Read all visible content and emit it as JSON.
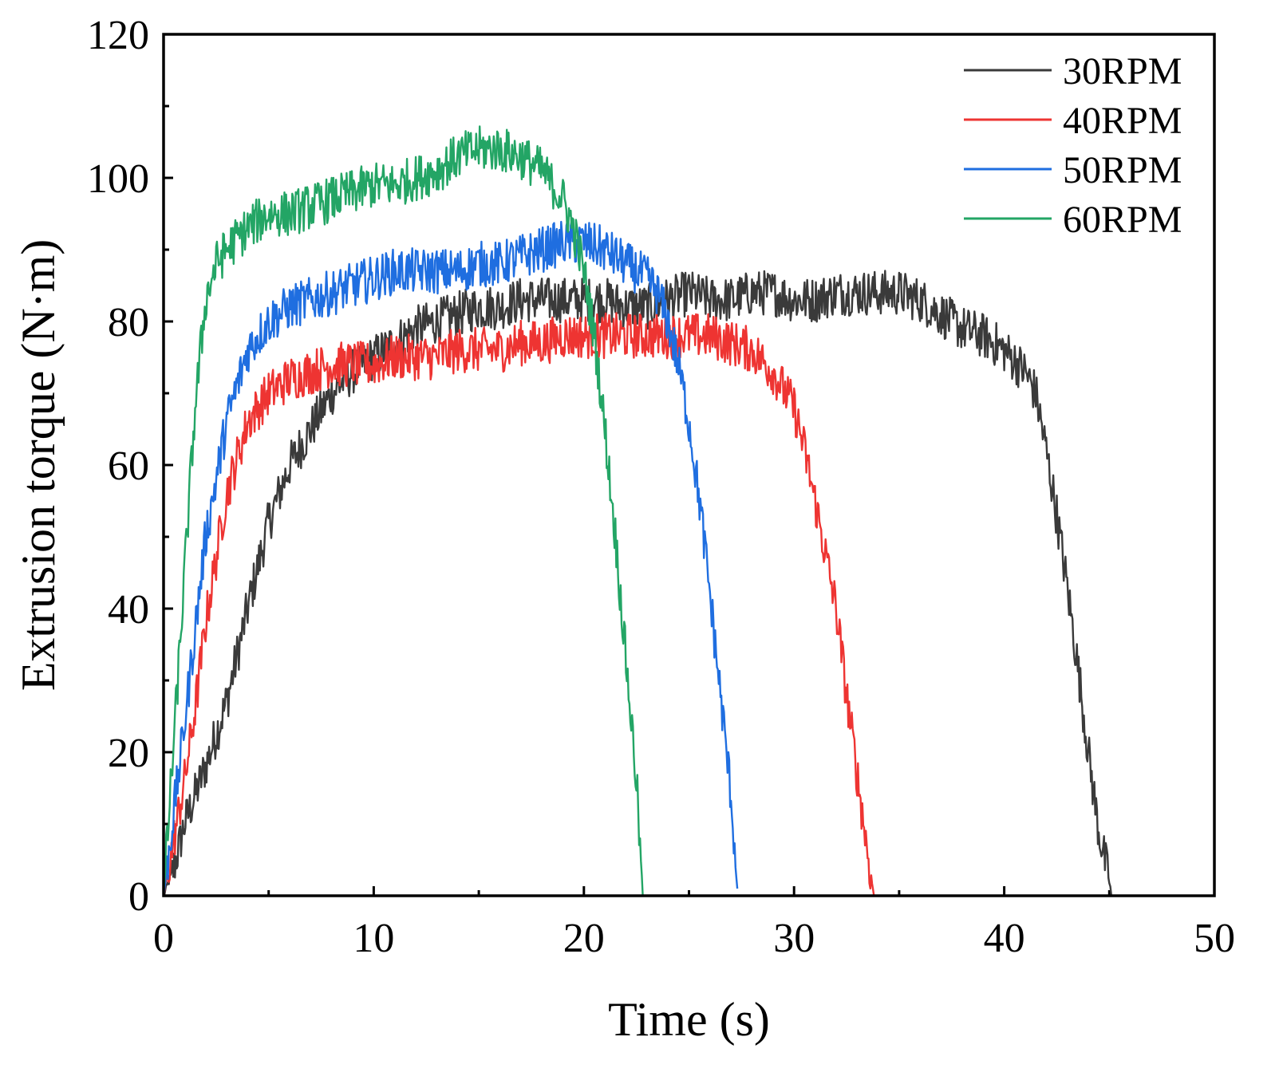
{
  "chart_data": {
    "type": "line",
    "title": "",
    "xlabel": "Time (s)",
    "ylabel": "Extrusion torque (N·m)",
    "xlim": [
      0,
      50
    ],
    "ylim": [
      0,
      120
    ],
    "xticks": [
      0,
      10,
      20,
      30,
      40,
      50
    ],
    "yticks": [
      0,
      20,
      40,
      60,
      80,
      100,
      120
    ],
    "grid": false,
    "legend_position": "top-right",
    "series": [
      {
        "name": "30RPM",
        "color": "#3a3a3a",
        "x": [
          0,
          0.5,
          1,
          2,
          3,
          4,
          5,
          6,
          7,
          8,
          9,
          10,
          11,
          12,
          13,
          14,
          15,
          16,
          17,
          18,
          19,
          20,
          21,
          22,
          23,
          24,
          25,
          26,
          27,
          28,
          29,
          30,
          31,
          32,
          33,
          34,
          35,
          36,
          37,
          38,
          39,
          40,
          41,
          41.5,
          42,
          42.5,
          43,
          43.5,
          44,
          44.5,
          45,
          45.1
        ],
        "y": [
          0,
          4,
          10,
          18,
          27,
          40,
          52,
          60,
          65,
          70,
          73,
          75,
          77,
          79,
          80,
          81,
          82,
          82,
          83,
          83,
          83,
          83,
          83,
          82,
          82,
          83,
          84,
          83,
          83,
          84,
          84,
          83,
          83,
          84,
          84,
          84,
          84,
          83,
          81,
          79,
          78,
          76,
          73,
          70,
          62,
          53,
          43,
          32,
          20,
          9,
          2,
          0
        ]
      },
      {
        "name": "40RPM",
        "color": "#ee3432",
        "x": [
          0,
          0.5,
          1,
          1.5,
          2,
          3,
          4,
          5,
          6,
          7,
          8,
          9,
          10,
          11,
          12,
          13,
          14,
          15,
          16,
          17,
          18,
          19,
          20,
          21,
          22,
          23,
          24,
          25,
          26,
          27,
          28,
          29,
          30,
          30.5,
          31,
          32,
          32.5,
          33,
          33.5,
          33.8
        ],
        "y": [
          0,
          8,
          16,
          26,
          38,
          56,
          66,
          70,
          72,
          73,
          74,
          74,
          74,
          75,
          75,
          75,
          76,
          76,
          76,
          77,
          77,
          78,
          78,
          78,
          78,
          78,
          78,
          78,
          78,
          77,
          76,
          73,
          68,
          62,
          55,
          40,
          28,
          17,
          6,
          0
        ]
      },
      {
        "name": "50RPM",
        "color": "#1f6ee0",
        "x": [
          0,
          0.5,
          1,
          1.5,
          2,
          3,
          4,
          5,
          6,
          7,
          8,
          9,
          10,
          11,
          12,
          13,
          14,
          15,
          16,
          17,
          18,
          19,
          20,
          21,
          22,
          23,
          23.5,
          24,
          24.5,
          25,
          25.5,
          26,
          26.5,
          27,
          27.3
        ],
        "y": [
          0,
          12,
          24,
          37,
          50,
          66,
          76,
          80,
          82,
          83,
          84,
          85,
          86,
          87,
          87,
          87,
          87,
          88,
          88,
          89,
          90,
          91,
          91,
          90,
          88,
          86,
          84,
          80,
          74,
          66,
          55,
          42,
          28,
          14,
          1
        ]
      },
      {
        "name": "60RPM",
        "color": "#23a565",
        "x": [
          0,
          0.5,
          1,
          1.5,
          2,
          2.5,
          3,
          4,
          5,
          6,
          7,
          8,
          9,
          10,
          11,
          12,
          13,
          14,
          15,
          16,
          17,
          18,
          18.5,
          19,
          19.5,
          20,
          20.5,
          21,
          21.5,
          22,
          22.5,
          22.8
        ],
        "y": [
          0,
          22,
          45,
          68,
          83,
          88,
          90,
          93,
          95,
          95,
          96,
          97,
          98,
          99,
          99,
          100,
          101,
          103,
          104,
          104,
          103,
          101,
          99,
          97,
          93,
          87,
          78,
          65,
          50,
          33,
          16,
          0
        ]
      }
    ]
  }
}
